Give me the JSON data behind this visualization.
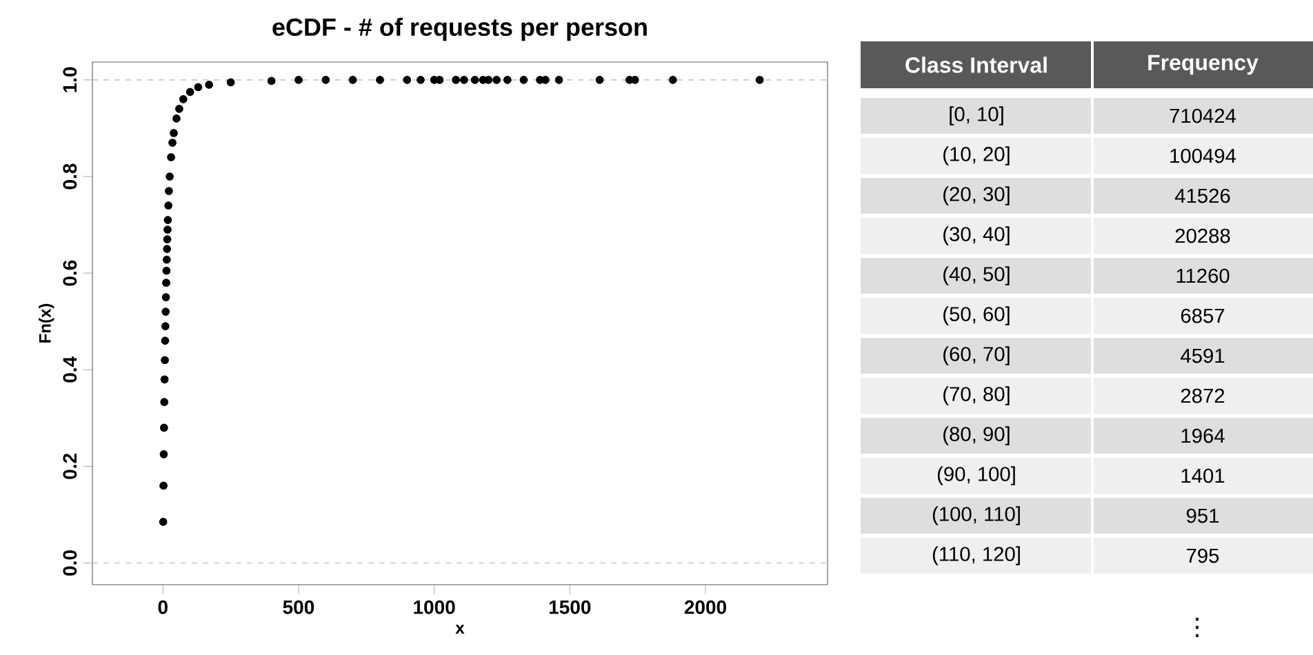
{
  "chart_data": [
    {
      "type": "scatter",
      "title": "eCDF - # of requests per person",
      "xlabel": "x",
      "ylabel": "Fn(x)",
      "color": "#000000",
      "marker": "circle",
      "grid": false,
      "xlim": [
        -260,
        2450
      ],
      "ylim": [
        -0.045,
        1.037
      ],
      "xticks": [
        0,
        500,
        1000,
        1500,
        2000
      ],
      "yticks": [
        {
          "value": 0,
          "label": "0.0"
        },
        {
          "value": 0.2,
          "label": "0.2"
        },
        {
          "value": 0.4,
          "label": "0.4"
        },
        {
          "value": 0.6,
          "label": "0.6"
        },
        {
          "value": 0.8,
          "label": "0.8"
        },
        {
          "value": 1,
          "label": "1.0"
        }
      ],
      "ref_lines": [
        {
          "axis": "y",
          "value": 0,
          "color": "#c8c8c8",
          "line_style": "dashed"
        },
        {
          "axis": "y",
          "value": 1,
          "color": "#c8c8c8",
          "line_style": "dashed"
        }
      ],
      "x": [
        1,
        2,
        3,
        4,
        5,
        6,
        7,
        8,
        9,
        10,
        11,
        12,
        13,
        14,
        15,
        16,
        17,
        18,
        20,
        22,
        25,
        30,
        35,
        40,
        50,
        60,
        75,
        100,
        130,
        170,
        250,
        400,
        500,
        600,
        700,
        800,
        900,
        950,
        1000,
        1020,
        1080,
        1110,
        1150,
        1180,
        1200,
        1230,
        1270,
        1330,
        1390,
        1410,
        1460,
        1610,
        1720,
        1740,
        1880,
        2200
      ],
      "values": [
        0.085,
        0.16,
        0.225,
        0.28,
        0.333,
        0.38,
        0.42,
        0.46,
        0.49,
        0.52,
        0.55,
        0.58,
        0.605,
        0.628,
        0.65,
        0.67,
        0.69,
        0.71,
        0.74,
        0.77,
        0.8,
        0.84,
        0.87,
        0.89,
        0.92,
        0.94,
        0.96,
        0.975,
        0.985,
        0.99,
        0.995,
        0.998,
        1,
        1,
        1,
        1,
        1,
        1,
        1,
        1,
        1,
        1,
        1,
        1,
        1,
        1,
        1,
        1,
        1,
        1,
        1,
        1,
        1,
        1,
        1,
        1
      ]
    },
    {
      "type": "other",
      "xlabel": "Class Interval",
      "ylabel": "Frequency",
      "data_labels": true,
      "categories": [
        "[0, 10]",
        "(10, 20]",
        "(20, 30]",
        "(30, 40]",
        "(40, 50]",
        "(50, 60]",
        "(60, 70]",
        "(70, 80]",
        "(80, 90]",
        "(90, 100]",
        "(100, 110]",
        "(110, 120]"
      ],
      "values": [
        710424,
        100494,
        41526,
        20288,
        11260,
        6857,
        4591,
        2872,
        1964,
        1401,
        951,
        795
      ],
      "annotations": [
        "⋮"
      ]
    }
  ]
}
